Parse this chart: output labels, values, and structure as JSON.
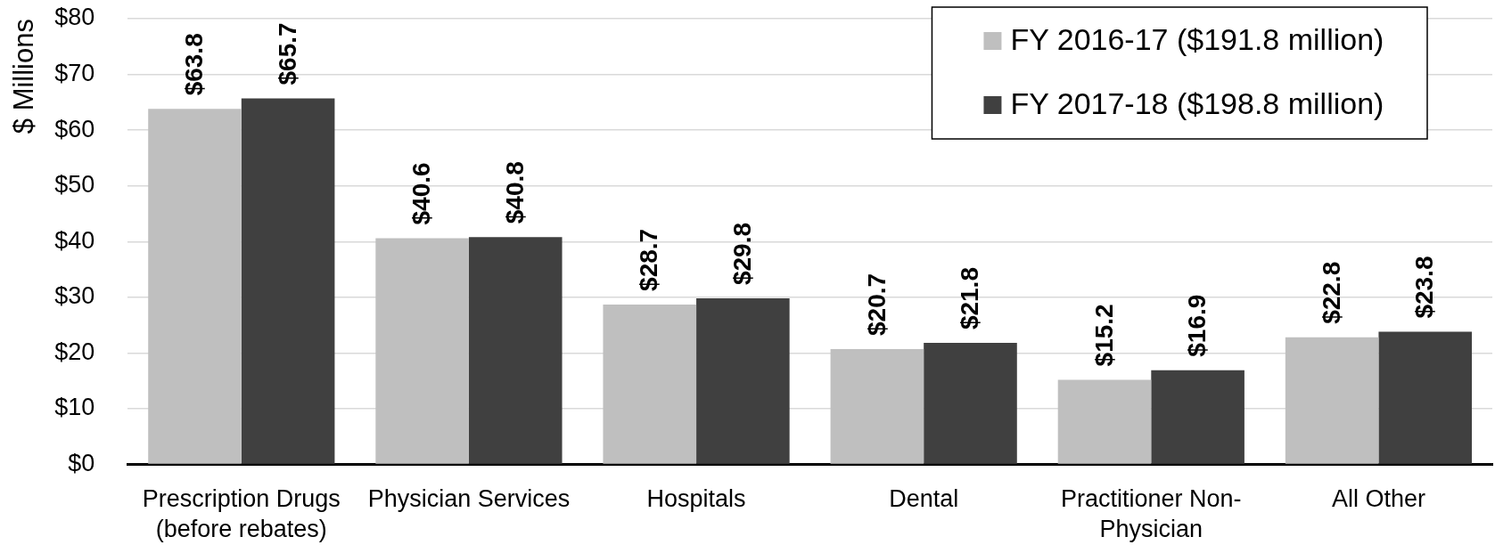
{
  "chart_data": {
    "type": "bar",
    "ylabel": "$ Millions",
    "categories": [
      "Prescription Drugs (before rebates)",
      "Physician Services",
      "Hospitals",
      "Dental",
      "Practitioner Non-Physician",
      "All Other"
    ],
    "series": [
      {
        "name": "FY 2016-17 ($191.8 million)",
        "color": "#bfbfbf",
        "values": [
          63.8,
          40.6,
          28.7,
          20.7,
          15.2,
          22.8
        ],
        "value_labels": [
          "$63.8",
          "$40.6",
          "$28.7",
          "$20.7",
          "$15.2",
          "$22.8"
        ]
      },
      {
        "name": "FY 2017-18 ($198.8 million)",
        "color": "#404040",
        "values": [
          65.7,
          40.8,
          29.8,
          21.8,
          16.9,
          23.8
        ],
        "value_labels": [
          "$65.7",
          "$40.8",
          "$29.8",
          "$21.8",
          "$16.9",
          "$23.8"
        ]
      }
    ],
    "ylim": [
      0,
      80
    ],
    "yticks": [
      {
        "value": 0,
        "label": "$0"
      },
      {
        "value": 10,
        "label": "$10"
      },
      {
        "value": 20,
        "label": "$20"
      },
      {
        "value": 30,
        "label": "$30"
      },
      {
        "value": 40,
        "label": "$40"
      },
      {
        "value": 50,
        "label": "$50"
      },
      {
        "value": 60,
        "label": "$60"
      },
      {
        "value": 70,
        "label": "$70"
      },
      {
        "value": 80,
        "label": "$80"
      }
    ],
    "grid": "y",
    "legend": "top right"
  }
}
